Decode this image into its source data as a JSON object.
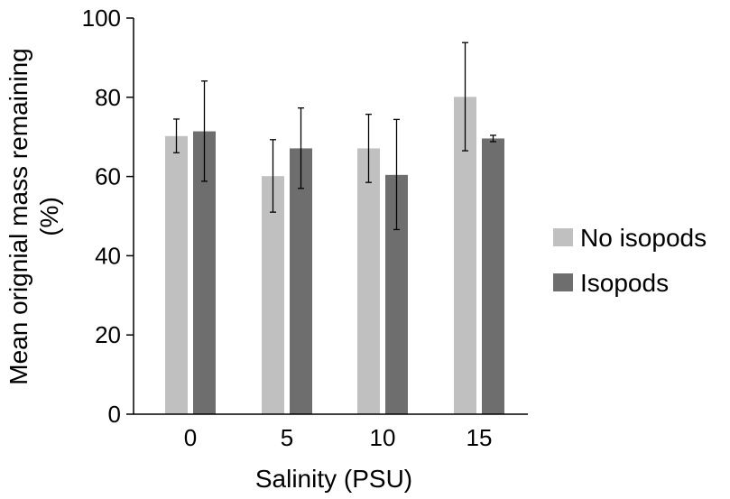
{
  "chart_data": {
    "type": "bar",
    "title": "",
    "xlabel": "Salinity (PSU)",
    "ylabel_lines": [
      "Mean orignial mass remaining",
      "(%)"
    ],
    "categories": [
      "0",
      "5",
      "10",
      "15"
    ],
    "ylim": [
      0,
      100
    ],
    "yticks": [
      "0",
      "20",
      "40",
      "60",
      "80",
      "100"
    ],
    "grid": false,
    "legend_position": "right",
    "series": [
      {
        "name": "No isopods",
        "color": "#c0c0c0",
        "values": [
          70.2,
          60.1,
          67.1,
          80.1
        ],
        "err_low": [
          66.0,
          51.0,
          58.5,
          66.5
        ],
        "err_high": [
          74.5,
          69.3,
          75.7,
          93.8
        ]
      },
      {
        "name": "Isopods",
        "color": "#6e6e6e",
        "values": [
          71.4,
          67.1,
          60.4,
          69.6
        ],
        "err_low": [
          58.8,
          57.0,
          46.6,
          68.8
        ],
        "err_high": [
          84.1,
          77.3,
          74.4,
          70.4
        ]
      }
    ]
  }
}
